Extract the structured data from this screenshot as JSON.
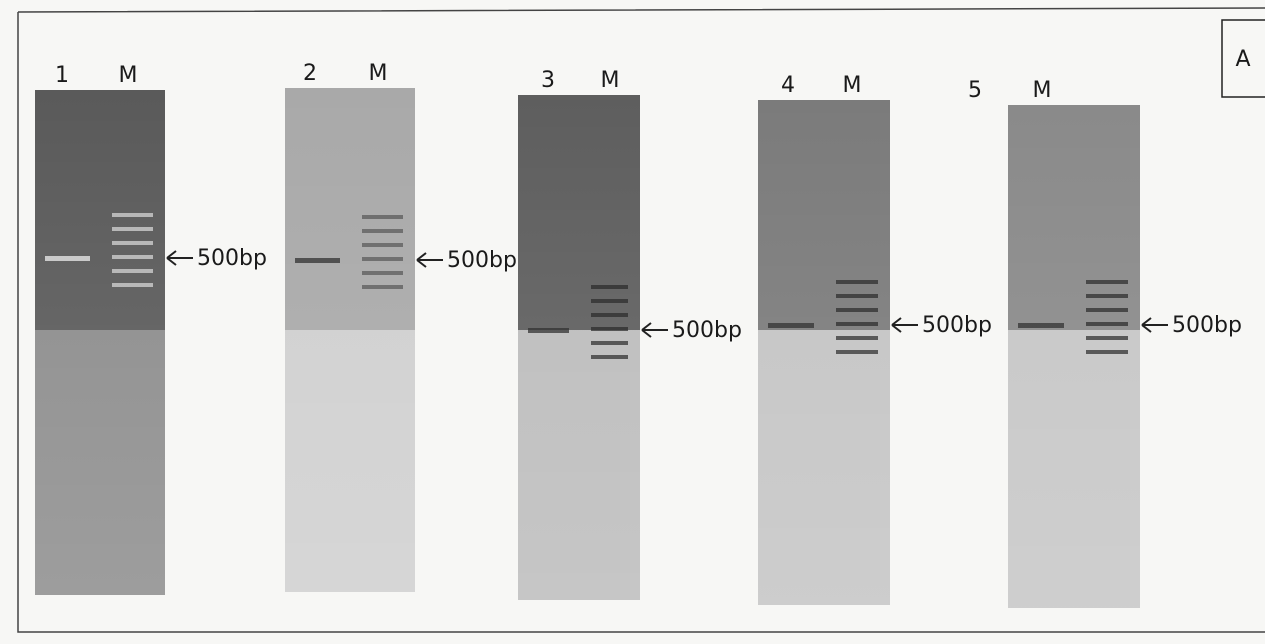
{
  "panel_label": "A",
  "gels": [
    {
      "lane": "1",
      "marker": "M",
      "band_label": "500bp"
    },
    {
      "lane": "2",
      "marker": "M",
      "band_label": "500bp"
    },
    {
      "lane": "3",
      "marker": "M",
      "band_label": "500bp"
    },
    {
      "lane": "4",
      "marker": "M",
      "band_label": "500bp"
    },
    {
      "lane": "5",
      "marker": "M",
      "band_label": "500bp"
    }
  ]
}
